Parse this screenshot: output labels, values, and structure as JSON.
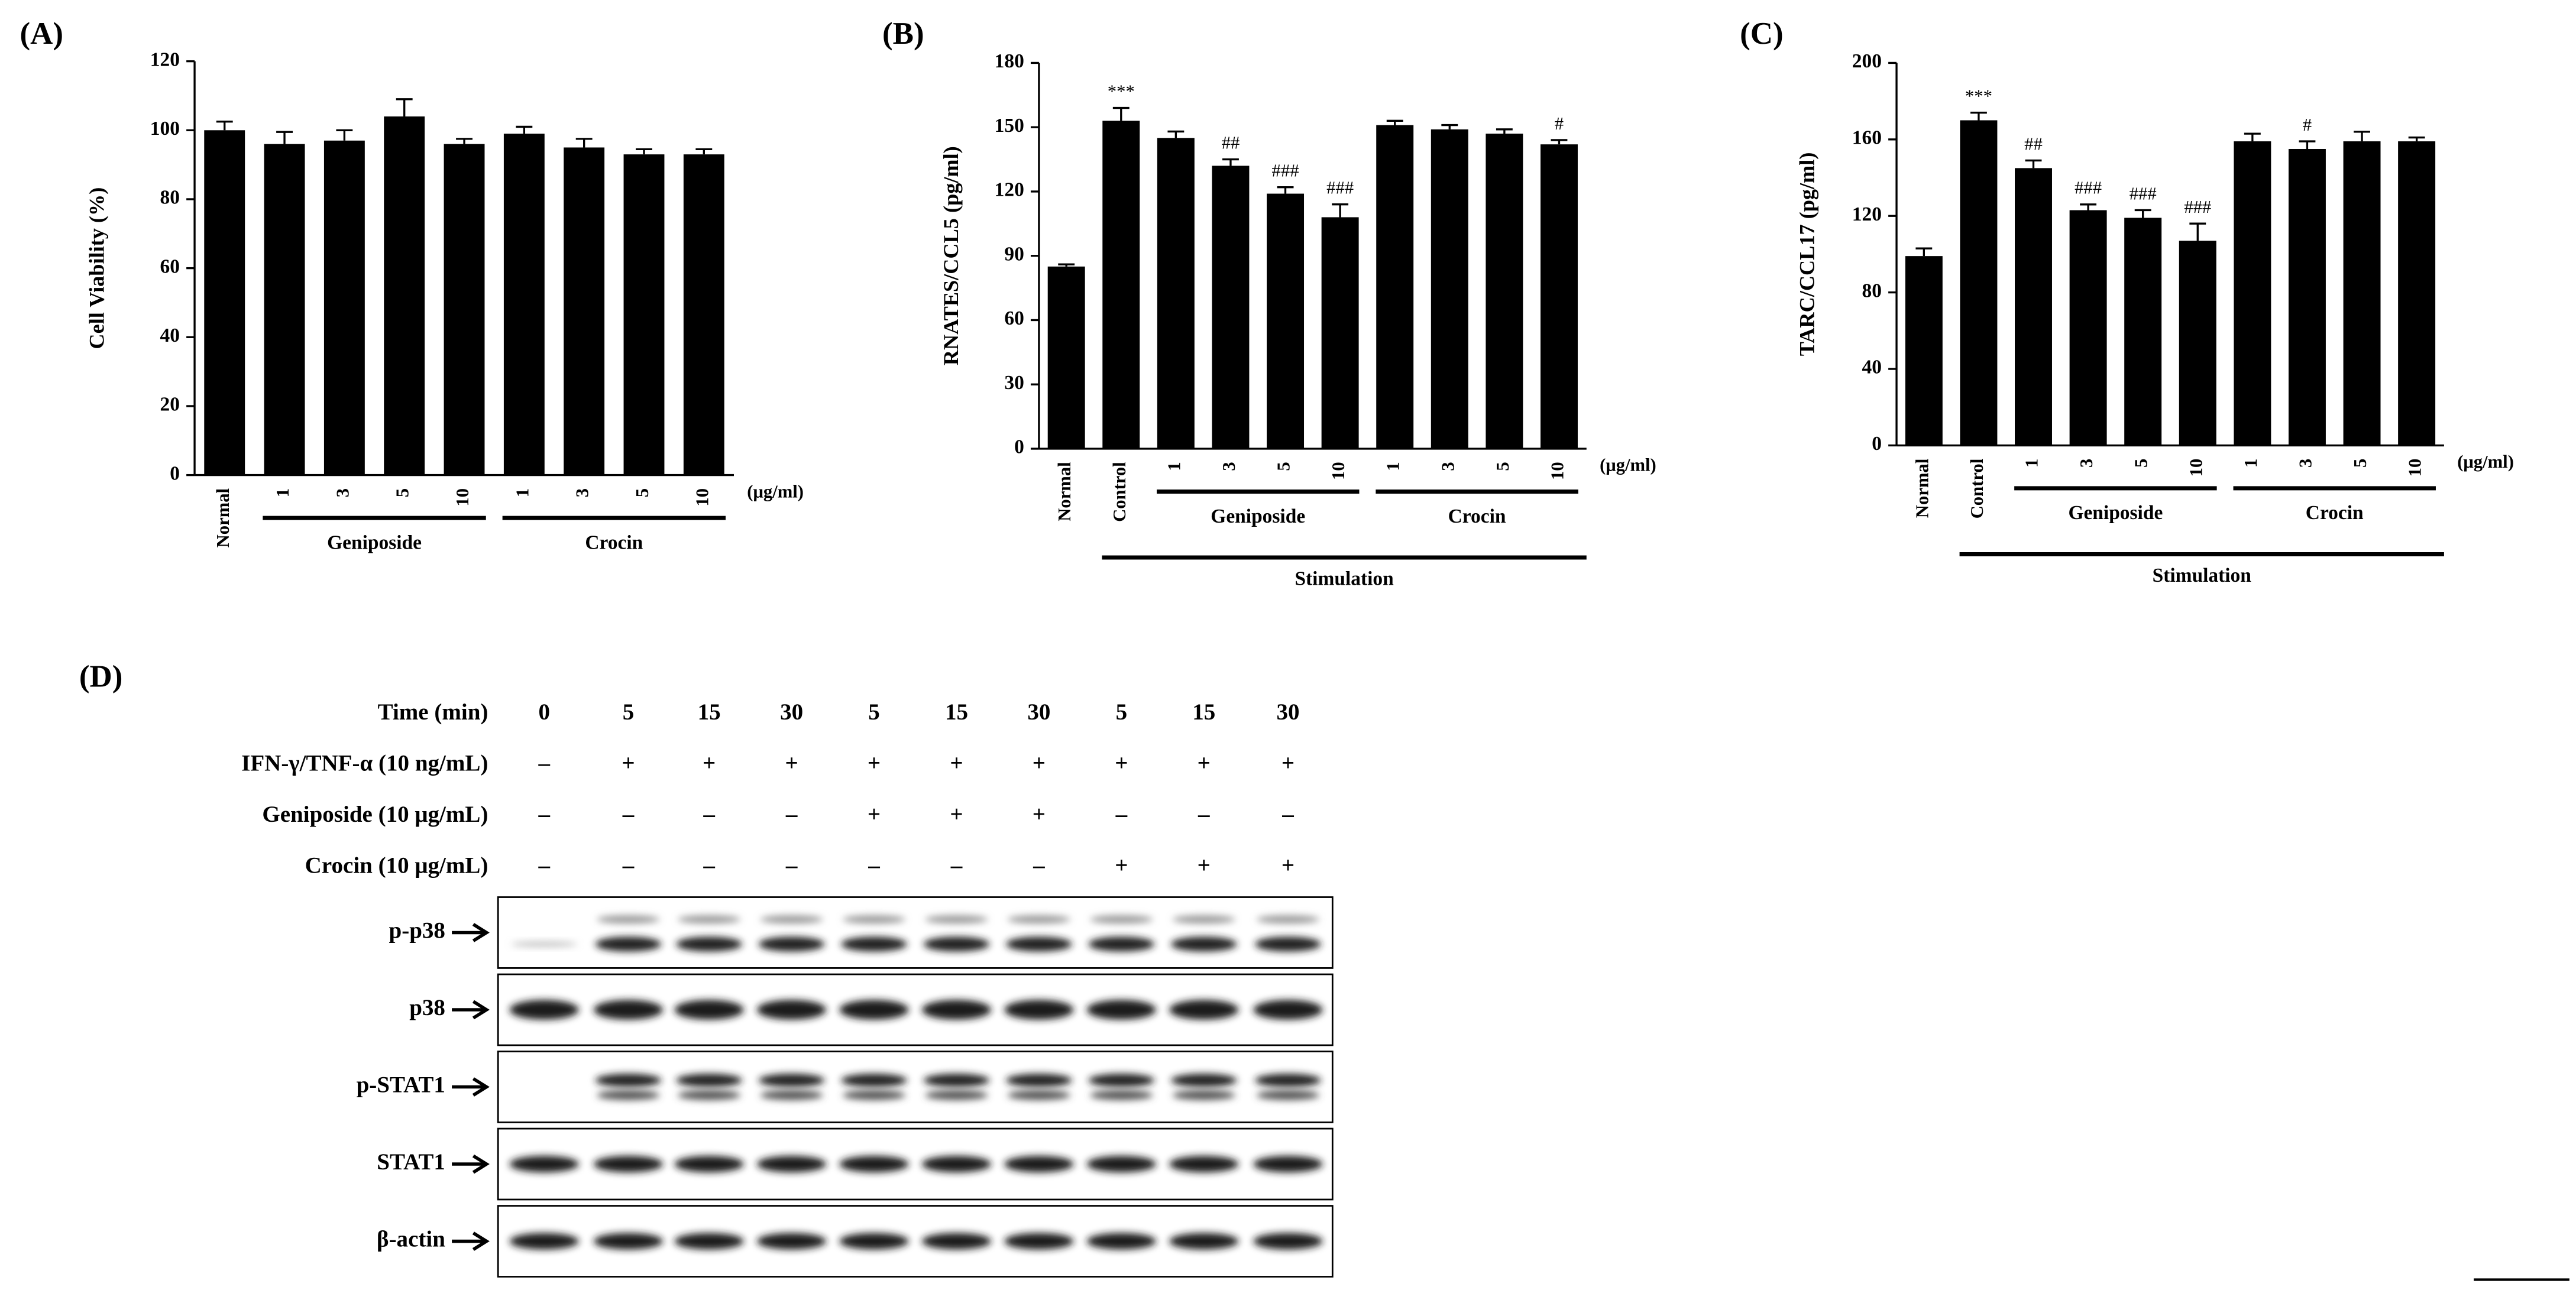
{
  "chart_data": [
    {
      "type": "bar",
      "panel": "(A)",
      "y_label": "Cell Viability (%)",
      "categories": [
        "Normal",
        "1",
        "3",
        "5",
        "10",
        "1",
        "3",
        "5",
        "10"
      ],
      "values": [
        100,
        96,
        97,
        104,
        96,
        99,
        95,
        93,
        93
      ],
      "errors": [
        2.5,
        3.5,
        3,
        5,
        1.5,
        2,
        2.5,
        1.5,
        1.5
      ],
      "color": "#000000",
      "ylim": [
        0,
        120
      ],
      "yticks": [
        0,
        20,
        40,
        60,
        80,
        100,
        120
      ],
      "x_unit": "(μg/ml)",
      "groups": [
        {
          "label": "Geniposide",
          "start": 1,
          "end": 4
        },
        {
          "label": "Crocin",
          "start": 5,
          "end": 8
        }
      ]
    },
    {
      "type": "bar",
      "panel": "(B)",
      "y_label": "RNATES/CCL5 (pg/ml)",
      "categories": [
        "Normal",
        "Control",
        "1",
        "3",
        "5",
        "10",
        "1",
        "3",
        "5",
        "10"
      ],
      "values": [
        85,
        153,
        145,
        132,
        119,
        108,
        151,
        149,
        147,
        142
      ],
      "errors": [
        1,
        6,
        3,
        3,
        3,
        6,
        2,
        2,
        2,
        2
      ],
      "markers": [
        null,
        "***",
        null,
        "##",
        "###",
        "###",
        null,
        null,
        null,
        "#"
      ],
      "color": "#000000",
      "ylim": [
        0,
        180
      ],
      "yticks": [
        0,
        30,
        60,
        90,
        120,
        150,
        180
      ],
      "x_unit": "(μg/ml)",
      "groups": [
        {
          "label": "Geniposide",
          "start": 2,
          "end": 5
        },
        {
          "label": "Crocin",
          "start": 6,
          "end": 9
        }
      ],
      "bracket": {
        "label": "Stimulation",
        "start": 1,
        "end": 9
      }
    },
    {
      "type": "bar",
      "panel": "(C)",
      "y_label": "TARC/CCL17 (pg/ml)",
      "categories": [
        "Normal",
        "Control",
        "1",
        "3",
        "5",
        "10",
        "1",
        "3",
        "5",
        "10"
      ],
      "values": [
        99,
        170,
        145,
        123,
        119,
        107,
        159,
        155,
        159,
        159
      ],
      "errors": [
        4,
        4,
        4,
        3,
        4,
        9,
        4,
        4,
        5,
        2
      ],
      "markers": [
        null,
        "***",
        "##",
        "###",
        "###",
        "###",
        null,
        "#",
        null,
        null
      ],
      "color": "#000000",
      "ylim": [
        0,
        200
      ],
      "yticks": [
        0,
        40,
        80,
        120,
        160,
        200
      ],
      "x_unit": "(μg/ml)",
      "groups": [
        {
          "label": "Geniposide",
          "start": 2,
          "end": 5
        },
        {
          "label": "Crocin",
          "start": 6,
          "end": 9
        }
      ],
      "bracket": {
        "label": "Stimulation",
        "start": 1,
        "end": 9
      }
    }
  ],
  "blot": {
    "panel": "(D)",
    "conditions": [
      {
        "label": "Time (min)",
        "values": [
          0,
          5,
          15,
          30,
          5,
          15,
          30,
          5,
          15,
          30
        ]
      },
      {
        "label": "IFN-γ/TNF-α (10 ng/mL)",
        "values": [
          "–",
          "+",
          "+",
          "+",
          "+",
          "+",
          "+",
          "+",
          "+",
          "+"
        ]
      },
      {
        "label": "Geniposide (10 μg/mL)",
        "values": [
          "–",
          "–",
          "–",
          "–",
          "+",
          "+",
          "+",
          "–",
          "–",
          "–"
        ]
      },
      {
        "label": "Crocin (10 μg/mL)",
        "values": [
          "–",
          "–",
          "–",
          "–",
          "–",
          "–",
          "–",
          "+",
          "+",
          "+"
        ]
      }
    ],
    "bands": [
      "p-p38",
      "p38",
      "p-STAT1",
      "STAT1",
      "β-actin"
    ]
  }
}
